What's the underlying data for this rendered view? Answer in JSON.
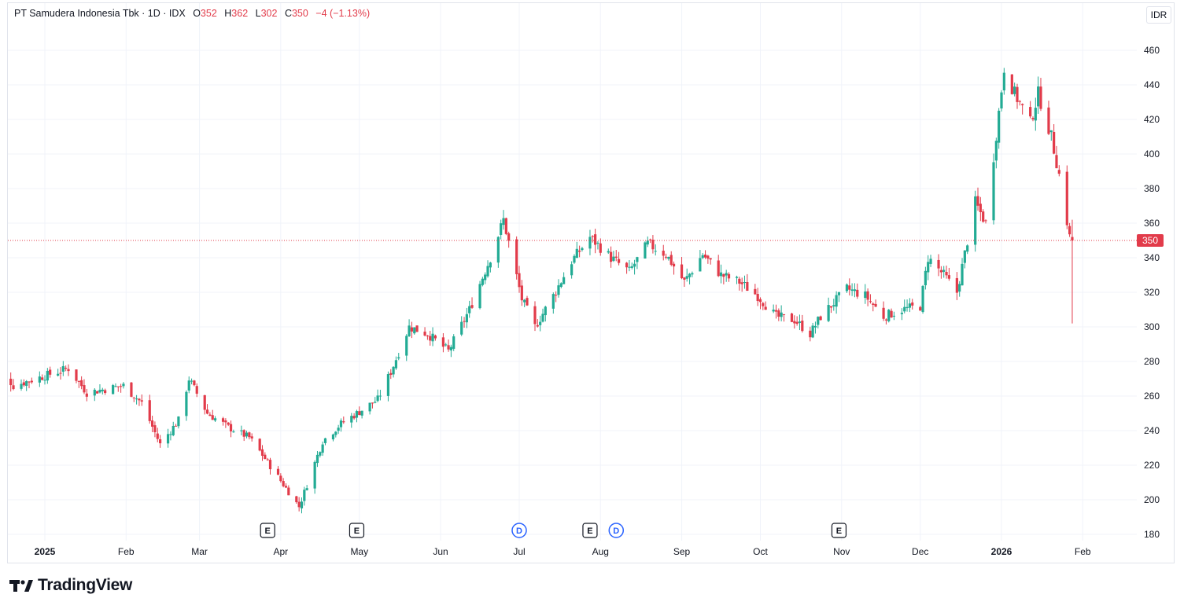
{
  "header": {
    "symbol": "PT Samudera Indonesia Tbk · 1D · IDX",
    "o_label": "O",
    "o_value": "352",
    "h_label": "H",
    "h_value": "362",
    "l_label": "L",
    "l_value": "302",
    "c_label": "C",
    "c_value": "350",
    "change": "−4 (−1.13%)"
  },
  "currency": "IDR",
  "last_price_label": "350",
  "branding": {
    "logo_text": "TradingView"
  },
  "colors": {
    "up": "#22ab94",
    "down": "#e23b4a",
    "grid": "#f0f3fa",
    "last_price": "#e23b4a",
    "event_d": "#2962ff"
  },
  "events": [
    {
      "type": "E",
      "date": "2025-03-27"
    },
    {
      "type": "E",
      "date": "2025-04-30"
    },
    {
      "type": "D",
      "date": "2025-07-01"
    },
    {
      "type": "E",
      "date": "2025-07-28"
    },
    {
      "type": "D",
      "date": "2025-08-07"
    },
    {
      "type": "E",
      "date": "2025-10-31"
    }
  ],
  "chart_data": {
    "type": "candlestick",
    "title": "PT Samudera Indonesia Tbk · 1D · IDX",
    "y_axis": {
      "unit": "IDR",
      "ticks": [
        180,
        200,
        220,
        240,
        260,
        280,
        300,
        320,
        340,
        360,
        380,
        400,
        420,
        440,
        460
      ],
      "range": [
        175,
        475
      ]
    },
    "x_axis": {
      "ticks": [
        {
          "label": "2025",
          "date": "2025-01-01",
          "bold": true
        },
        {
          "label": "Feb",
          "date": "2025-02-01"
        },
        {
          "label": "Mar",
          "date": "2025-03-01"
        },
        {
          "label": "Apr",
          "date": "2025-04-01"
        },
        {
          "label": "May",
          "date": "2025-05-01"
        },
        {
          "label": "Jun",
          "date": "2025-06-01"
        },
        {
          "label": "Jul",
          "date": "2025-07-01"
        },
        {
          "label": "Aug",
          "date": "2025-08-01"
        },
        {
          "label": "Sep",
          "date": "2025-09-01"
        },
        {
          "label": "Oct",
          "date": "2025-10-01"
        },
        {
          "label": "Nov",
          "date": "2025-11-01"
        },
        {
          "label": "Dec",
          "date": "2025-12-01"
        },
        {
          "label": "2026",
          "date": "2026-01-01",
          "bold": true
        },
        {
          "label": "Feb",
          "date": "2026-02-01"
        }
      ]
    },
    "last_price": 350,
    "anchors": [
      [
        "2024-12-12",
        282
      ],
      [
        "2024-12-20",
        266
      ],
      [
        "2025-01-10",
        276
      ],
      [
        "2025-01-17",
        262
      ],
      [
        "2025-01-31",
        266
      ],
      [
        "2025-02-07",
        256
      ],
      [
        "2025-02-14",
        232
      ],
      [
        "2025-02-21",
        246
      ],
      [
        "2025-02-25",
        270
      ],
      [
        "2025-03-04",
        250
      ],
      [
        "2025-03-12",
        242
      ],
      [
        "2025-03-20",
        236
      ],
      [
        "2025-03-25",
        226
      ],
      [
        "2025-04-08",
        196
      ],
      [
        "2025-04-17",
        234
      ],
      [
        "2025-04-24",
        244
      ],
      [
        "2025-05-08",
        258
      ],
      [
        "2025-05-13",
        274
      ],
      [
        "2025-05-20",
        300
      ],
      [
        "2025-05-27",
        296
      ],
      [
        "2025-06-04",
        286
      ],
      [
        "2025-06-12",
        310
      ],
      [
        "2025-06-20",
        340
      ],
      [
        "2025-06-25",
        362
      ],
      [
        "2025-07-02",
        316
      ],
      [
        "2025-07-07",
        300
      ],
      [
        "2025-07-14",
        318
      ],
      [
        "2025-07-21",
        338
      ],
      [
        "2025-07-28",
        352
      ],
      [
        "2025-08-05",
        340
      ],
      [
        "2025-08-12",
        332
      ],
      [
        "2025-08-19",
        348
      ],
      [
        "2025-08-26",
        342
      ],
      [
        "2025-09-02",
        326
      ],
      [
        "2025-09-09",
        342
      ],
      [
        "2025-09-16",
        330
      ],
      [
        "2025-09-23",
        326
      ],
      [
        "2025-09-30",
        318
      ],
      [
        "2025-10-07",
        306
      ],
      [
        "2025-10-14",
        304
      ],
      [
        "2025-10-20",
        296
      ],
      [
        "2025-10-24",
        306
      ],
      [
        "2025-11-03",
        322
      ],
      [
        "2025-11-10",
        318
      ],
      [
        "2025-11-17",
        306
      ],
      [
        "2025-11-24",
        310
      ],
      [
        "2025-12-01",
        312
      ],
      [
        "2025-12-04",
        340
      ],
      [
        "2025-12-10",
        330
      ],
      [
        "2025-12-15",
        320
      ],
      [
        "2025-12-22",
        372
      ],
      [
        "2025-12-26",
        360
      ],
      [
        "2026-01-02",
        450
      ],
      [
        "2026-01-06",
        435
      ],
      [
        "2026-01-12",
        418
      ],
      [
        "2026-01-15",
        435
      ],
      [
        "2026-01-20",
        410
      ],
      [
        "2026-01-23",
        388
      ],
      [
        "2026-01-27",
        352
      ],
      [
        "2026-01-28",
        350
      ]
    ],
    "final_candle": {
      "date": "2026-01-28",
      "open": 352,
      "high": 362,
      "low": 302,
      "close": 350
    }
  }
}
